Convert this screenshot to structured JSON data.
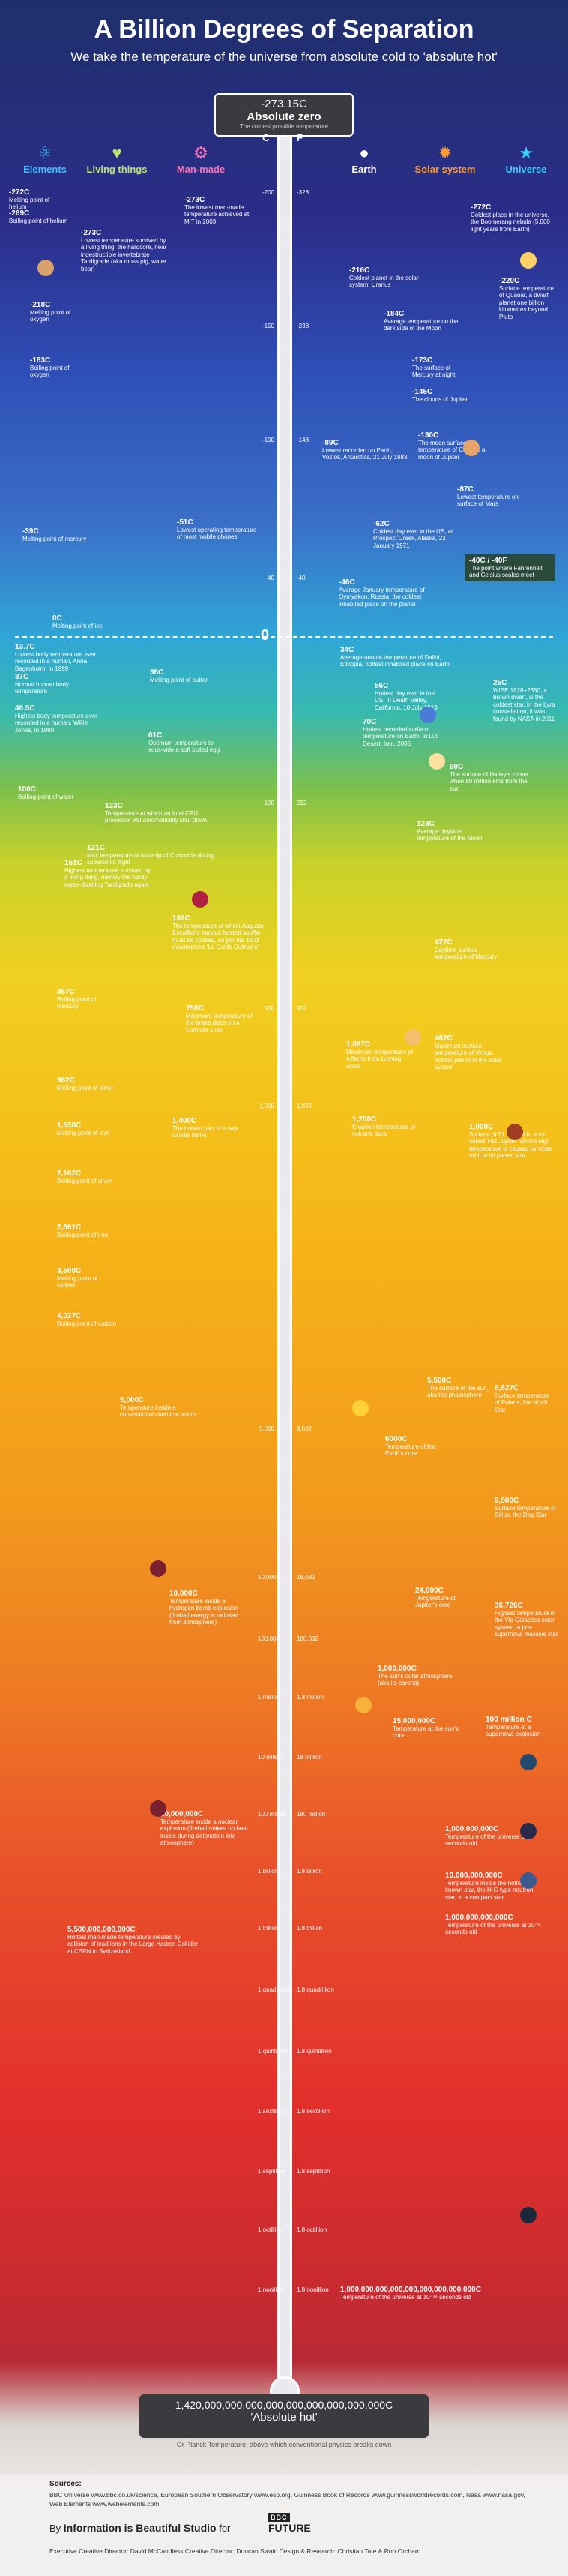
{
  "header": {
    "title": "A Billion Degrees of Separation",
    "subtitle": "We take the temperature of the universe from absolute cold to 'absolute hot'"
  },
  "categories": [
    {
      "label": "Elements",
      "color": "#3fc2ff",
      "icon": "atom-icon"
    },
    {
      "label": "Living things",
      "color": "#b9e36a",
      "icon": "heart-icon"
    },
    {
      "label": "Man-made",
      "color": "#ff6fb3",
      "icon": "gear-icon"
    },
    {
      "label": "Earth",
      "color": "#ffffff",
      "icon": "globe-icon"
    },
    {
      "label": "Solar system",
      "color": "#ff9d2e",
      "icon": "sun-icon"
    },
    {
      "label": "Universe",
      "color": "#39d0ff",
      "icon": "star-icon"
    }
  ],
  "scale": {
    "c_label": "C",
    "f_label": "F",
    "zero": "0"
  },
  "start": {
    "value": "-273.15C",
    "label": "Absolute zero",
    "sub": "The coldest possible temperature"
  },
  "end": {
    "value": "1,420,000,000,000,000,000,000,000,000,000C",
    "label": "'Absolute hot'",
    "sub": "Or Planck Temperature, above which conventional physics breaks down"
  },
  "ticks": [
    {
      "c": "-200",
      "f": "-328"
    },
    {
      "c": "-150",
      "f": "-238"
    },
    {
      "c": "-100",
      "f": "-148"
    },
    {
      "c": "-40",
      "f": "-40"
    },
    {
      "c": "100",
      "f": "212"
    },
    {
      "c": "500",
      "f": "932"
    },
    {
      "c": "1,000",
      "f": "1,832"
    },
    {
      "c": "5,000",
      "f": "9,032"
    },
    {
      "c": "10,000",
      "f": "18,032"
    },
    {
      "c": "100,000",
      "f": "180,032"
    },
    {
      "c": "1 million",
      "f": "1.8 million"
    },
    {
      "c": "10 million",
      "f": "18 million"
    },
    {
      "c": "100 million",
      "f": "180 million"
    },
    {
      "c": "1 billion",
      "f": "1.8 billion"
    },
    {
      "c": "1 trillion",
      "f": "1.8 trillion"
    },
    {
      "c": "1 quadrillion",
      "f": "1.8 quadrillion"
    },
    {
      "c": "1 quintillion",
      "f": "1.8 quintillion"
    },
    {
      "c": "1 sextillion",
      "f": "1.8 sextillion"
    },
    {
      "c": "1 septillion",
      "f": "1.8 septillion"
    },
    {
      "c": "1 octillion",
      "f": "1.8 octillion"
    },
    {
      "c": "1 nonillion",
      "f": "1.8 nonillion"
    }
  ],
  "events": [
    {
      "t": "-272C",
      "d": "Melting point of helium"
    },
    {
      "t": "-269C",
      "d": "Boiling point of helium"
    },
    {
      "t": "-273C",
      "d": "Lowest temperature survived by a living thing, the hardcore, near indestructible invertebrate Tardigrade (aka moss pig, water bear)"
    },
    {
      "t": "-273C",
      "d": "The lowest man-made temperature achieved at MIT in 2003"
    },
    {
      "t": "-272C",
      "d": "Coldest place in the universe, the Boomerang nebula (5,000 light years from Earth)"
    },
    {
      "t": "-218C",
      "d": "Melting point of oxygen"
    },
    {
      "t": "-216C",
      "d": "Coldest planet in the solar system, Uranus"
    },
    {
      "t": "-220C",
      "d": "Surface temperature of Quaoar, a dwarf planet one billion kilometres beyond Pluto"
    },
    {
      "t": "-183C",
      "d": "Boiling point of oxygen"
    },
    {
      "t": "-184C",
      "d": "Average temperature on the dark side of the Moon"
    },
    {
      "t": "-173C",
      "d": "The surface of Mercury at night"
    },
    {
      "t": "-145C",
      "d": "The clouds of Jupiter"
    },
    {
      "t": "-130C",
      "d": "The mean surface temperature of Callisto, a moon of Jupiter"
    },
    {
      "t": "-89C",
      "d": "Lowest recorded on Earth, Vostok, Antarctica, 21 July 1983"
    },
    {
      "t": "-87C",
      "d": "Lowest temperature on surface of Mars"
    },
    {
      "t": "-39C",
      "d": "Melting point of mercury"
    },
    {
      "t": "-51C",
      "d": "Lowest operating temperature of most mobile phones"
    },
    {
      "t": "-62C",
      "d": "Coldest day ever in the US, at Prospect Creek, Alaska, 23 January 1971"
    },
    {
      "t": "-40C / -40F",
      "d": "The point where Fahrenheit and Celsius scales meet"
    },
    {
      "t": "-46C",
      "d": "Average January temperature of Oymyakon, Russia, the coldest inhabited place on the planet"
    },
    {
      "t": "0C",
      "d": "Melting point of ice"
    },
    {
      "t": "34C",
      "d": "Average annual temperature of Dallol, Ethiopia, hottest inhabited place on Earth"
    },
    {
      "t": "13.7C",
      "d": "Lowest body temperature ever recorded in a human, Anna Bagenholm, in 1999"
    },
    {
      "t": "37C",
      "d": "Normal human body temperature"
    },
    {
      "t": "36C",
      "d": "Melting point of butter"
    },
    {
      "t": "56C",
      "d": "Hottest day ever in the US, in Death Valley, California, 10 July 1913"
    },
    {
      "t": "25C",
      "d": "WISE 1828+2650, a brown dwarf, is the coldest star. In the Lyra constellation, it was found by NASA in 2011"
    },
    {
      "t": "46.5C",
      "d": "Highest body temperature ever recorded in a human, Willie Jones, in 1980"
    },
    {
      "t": "61C",
      "d": "Optimum temperature to sous-vide a soft boiled egg"
    },
    {
      "t": "70C",
      "d": "Hottest recorded surface temperature on Earth, in Lut Desert, Iran, 2005"
    },
    {
      "t": "90C",
      "d": "The surface of Halley's comet when 80 million kms from the sun"
    },
    {
      "t": "100C",
      "d": "Boiling point of water"
    },
    {
      "t": "123C",
      "d": "Temperature at which an Intel CPU processor will automatically shut down"
    },
    {
      "t": "121C",
      "d": "Max temperature of nose tip of Concorde during supersonic flight"
    },
    {
      "t": "151C",
      "d": "Highest temperature survived by a living thing, namely the hardy water-dwelling Tardigrade again"
    },
    {
      "t": "123C",
      "d": "Average daytime temperature of the Moon"
    },
    {
      "t": "162C",
      "d": "The temperature at which Auguste Escoffier's famous frosted souffle must be cooked, as per his 1903 masterpiece 'Le Guide Culinaire'"
    },
    {
      "t": "357C",
      "d": "Boiling point of mercury"
    },
    {
      "t": "427C",
      "d": "Daytime surface temperature of Mercury"
    },
    {
      "t": "750C",
      "d": "Maximum temperature of the brake discs on a Formula 1 car"
    },
    {
      "t": "462C",
      "d": "Maximum surface temperature of Venus, hottest planet in the solar system"
    },
    {
      "t": "962C",
      "d": "Melting point of silver"
    },
    {
      "t": "1,027C",
      "d": "Maximum temperature of a flame from burning wood"
    },
    {
      "t": "1,538C",
      "d": "Melting point of iron"
    },
    {
      "t": "1,400C",
      "d": "The hottest part of a wax candle flame"
    },
    {
      "t": "1,200C",
      "d": "Eruption temperature of volcanic lava"
    },
    {
      "t": "1,000C",
      "d": "Surface of 51 Pegasi b, a so-called 'Hot Jupiter' whose high temperature is caused by close orbit to its parent star"
    },
    {
      "t": "2,162C",
      "d": "Boiling point of silver"
    },
    {
      "t": "2,861C",
      "d": "Boiling point of iron"
    },
    {
      "t": "3,500C",
      "d": "Melting point of carbon"
    },
    {
      "t": "4,027C",
      "d": "Boiling point of carbon"
    },
    {
      "t": "5,500C",
      "d": "The surface of the sun, aka the photosphere"
    },
    {
      "t": "6,627C",
      "d": "Surface temperature of Polaris, the North Star"
    },
    {
      "t": "5,000C",
      "d": "Temperature inside a conventional chemical bomb"
    },
    {
      "t": "6000C",
      "d": "Temperature of the Earth's core"
    },
    {
      "t": "9,500C",
      "d": "Surface temperature of Sirius, the Dog Star"
    },
    {
      "t": "10,000C",
      "d": "Temperature inside a hydrogen bomb explosion (fireball energy is radiated from atmosphere)"
    },
    {
      "t": "24,000C",
      "d": "Temperature at Jupiter's core"
    },
    {
      "t": "36,726C",
      "d": "Highest temperature in the Via Galactica solar system, a pre-supernova massive star"
    },
    {
      "t": "1,000,000C",
      "d": "The sun's outer atmosphere (aka its corona)"
    },
    {
      "t": "100 million C",
      "d": "Temperature at a supernova explosion"
    },
    {
      "t": "15,000,000C",
      "d": "Temperature at the sun's core"
    },
    {
      "t": "10,000,000C",
      "d": "Temperature inside a nuclear explosion (fireball makes up heat inside during detonation into atmosphere)"
    },
    {
      "t": "1,000,000,000C",
      "d": "Temperature of the universe 100 seconds old"
    },
    {
      "t": "10,000,000,000C",
      "d": "Temperature inside the hottest known star, the H-C-type neutron star, in a compact star"
    },
    {
      "t": "1,000,000,000,000C",
      "d": "Temperature of the universe at 10⁻⁶ seconds old"
    },
    {
      "t": "5,500,000,000,000C",
      "d": "Hottest man-made temperature created by collision of lead ions in the Large Hadron Collider at CERN in Switzerland"
    },
    {
      "t": "1,000,000,000,000,000,000,000,000,000C",
      "d": "Temperature of the universe at 10⁻³⁴ seconds old"
    }
  ],
  "footer": {
    "sources_label": "Sources:",
    "sources": "BBC Universe www.bbc.co.uk/science, European Southern Observatory www.eso.org, Guinness Book of Records www.guinnessworldrecords.com, Nasa www.nasa.gov, Web Elements www.webelements.com",
    "brand_prefix": "By",
    "brand": "Information is Beautiful Studio",
    "brand_for": "for",
    "bbc": "BBC",
    "future": "FUTURE",
    "credits": "Executive Creative Director: David McCandless   Creative Director: Duncan Swain   Design & Research: Christian Tate & Rob Orchard"
  }
}
